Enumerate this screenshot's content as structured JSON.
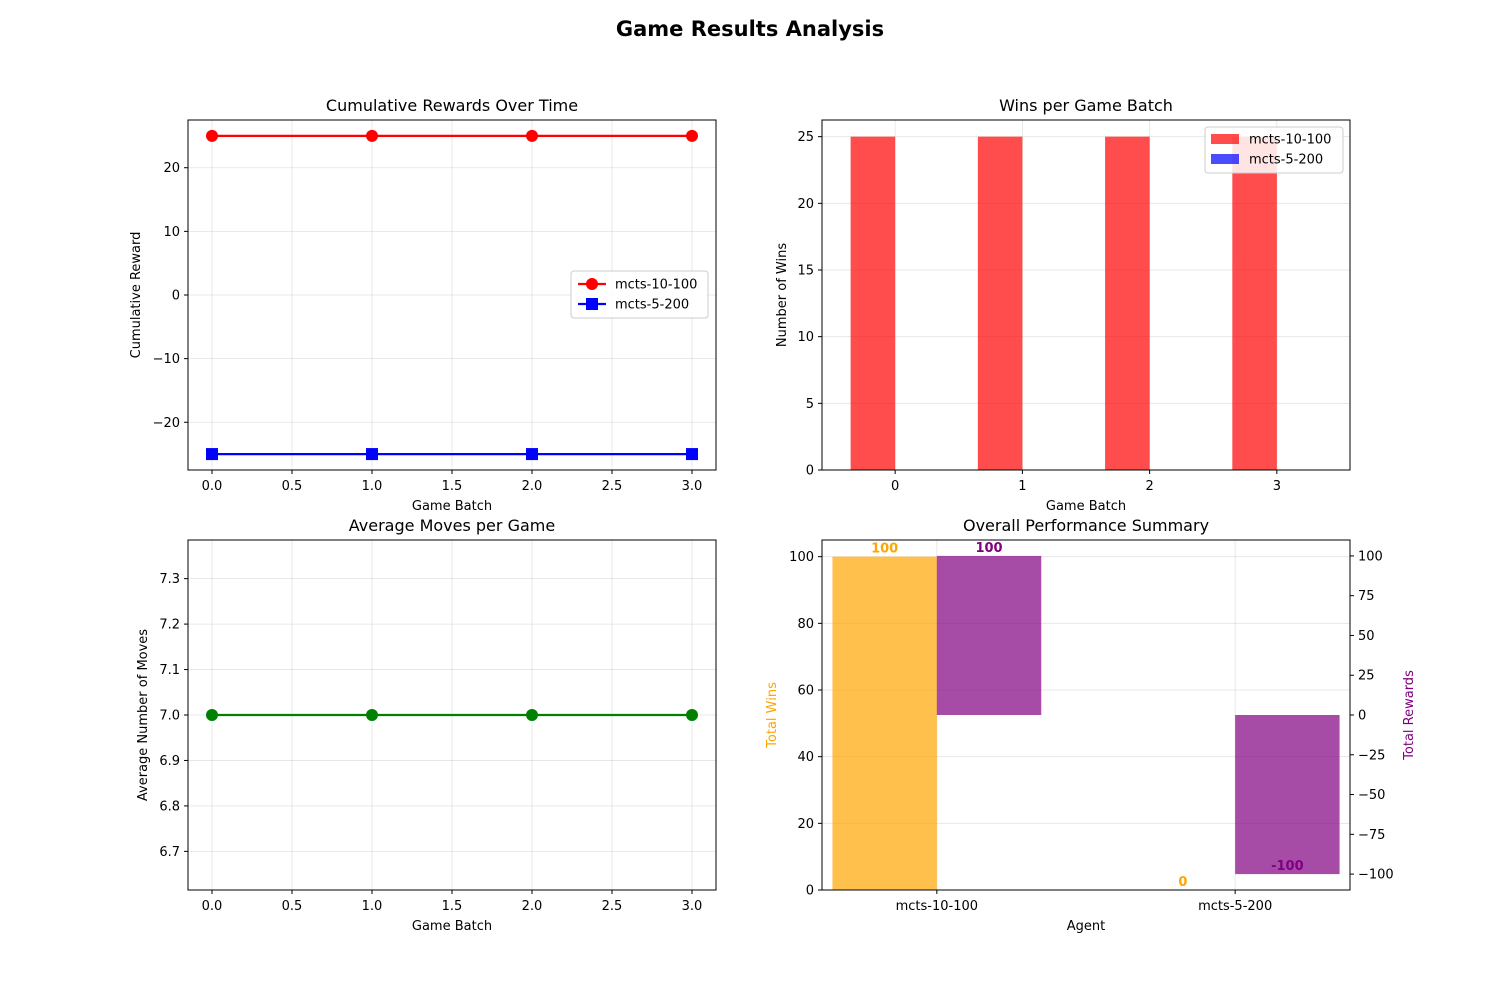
{
  "figure": {
    "title": "Game Results Analysis"
  },
  "chart_data": [
    {
      "type": "line",
      "title": "Cumulative Rewards Over Time",
      "xlabel": "Game Batch",
      "ylabel": "Cumulative Reward",
      "x": [
        0,
        1,
        2,
        3
      ],
      "xlim": [
        -0.15,
        3.15
      ],
      "ylim": [
        -27.5,
        27.5
      ],
      "xticks": [
        0.0,
        0.5,
        1.0,
        1.5,
        2.0,
        2.5,
        3.0
      ],
      "xtick_labels": [
        "0.0",
        "0.5",
        "1.0",
        "1.5",
        "2.0",
        "2.5",
        "3.0"
      ],
      "yticks": [
        -20,
        -10,
        0,
        10,
        20
      ],
      "ytick_labels": [
        "−20",
        "−10",
        "0",
        "10",
        "20"
      ],
      "grid": true,
      "legend": "center-right",
      "series": [
        {
          "name": "mcts-10-100",
          "values": [
            25,
            25,
            25,
            25
          ],
          "color": "#ff0000",
          "marker": "circle"
        },
        {
          "name": "mcts-5-200",
          "values": [
            -25,
            -25,
            -25,
            -25
          ],
          "color": "#0000ff",
          "marker": "square"
        }
      ]
    },
    {
      "type": "bar",
      "title": "Wins per Game Batch",
      "xlabel": "Game Batch",
      "ylabel": "Number of Wins",
      "categories": [
        "0",
        "1",
        "2",
        "3"
      ],
      "ylim": [
        0,
        26.25
      ],
      "yticks": [
        0,
        5,
        10,
        15,
        20,
        25
      ],
      "grid": true,
      "legend": "top-right",
      "series": [
        {
          "name": "mcts-10-100",
          "values": [
            25,
            25,
            25,
            25
          ],
          "color": "#ff0000"
        },
        {
          "name": "mcts-5-200",
          "values": [
            0,
            0,
            0,
            0
          ],
          "color": "#0000ff"
        }
      ]
    },
    {
      "type": "line",
      "title": "Average Moves per Game",
      "xlabel": "Game Batch",
      "ylabel": "Average Number of Moves",
      "x": [
        0,
        1,
        2,
        3
      ],
      "xlim": [
        -0.15,
        3.15
      ],
      "ylim": [
        6.615,
        7.385
      ],
      "xticks": [
        0.0,
        0.5,
        1.0,
        1.5,
        2.0,
        2.5,
        3.0
      ],
      "xtick_labels": [
        "0.0",
        "0.5",
        "1.0",
        "1.5",
        "2.0",
        "2.5",
        "3.0"
      ],
      "yticks": [
        6.7,
        6.8,
        6.9,
        7.0,
        7.1,
        7.2,
        7.3
      ],
      "ytick_labels": [
        "6.7",
        "6.8",
        "6.9",
        "7.0",
        "7.1",
        "7.2",
        "7.3"
      ],
      "grid": true,
      "series": [
        {
          "values": [
            7,
            7,
            7,
            7
          ],
          "color": "#008000",
          "marker": "circle"
        }
      ]
    },
    {
      "type": "bar",
      "title": "Overall Performance Summary",
      "xlabel": "Agent",
      "categories": [
        "mcts-10-100",
        "mcts-5-200"
      ],
      "grid": true,
      "left_axis": {
        "label": "Total Wins",
        "color": "#ffa500",
        "values": [
          100,
          0
        ],
        "value_labels": [
          "100",
          "0"
        ],
        "ylim": [
          0,
          105
        ],
        "yticks": [
          0,
          20,
          40,
          60,
          80,
          100
        ]
      },
      "right_axis": {
        "label": "Total Rewards",
        "color": "#800080",
        "values": [
          100,
          -100
        ],
        "value_labels": [
          "100",
          "-100"
        ],
        "ylim": [
          -110,
          110
        ],
        "yticks": [
          -100,
          -75,
          -50,
          -25,
          0,
          25,
          50,
          75,
          100
        ],
        "ytick_labels": [
          "−100",
          "−75",
          "−50",
          "−25",
          "0",
          "25",
          "50",
          "75",
          "100"
        ]
      }
    }
  ]
}
